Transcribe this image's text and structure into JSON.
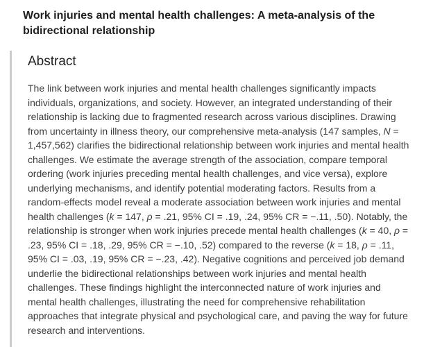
{
  "page": {
    "title": "Work injuries and mental health challenges: A meta-analysis of the bidirectional relationship"
  },
  "abstract": {
    "heading": "Abstract",
    "segments": [
      {
        "text": "The link between work injuries and mental health challenges significantly impacts individuals, organizations, and society. However, an integrated understanding of their relationship is lacking due to fragmented research across various disciplines. Drawing from uncertainty in illness theory, our comprehensive meta-analysis (147 samples, ",
        "italic": false
      },
      {
        "text": "N",
        "italic": true
      },
      {
        "text": " = 1,457,562) clarifies the bidirectional relationship between work injuries and mental health challenges. We estimate the average strength of the association, compare temporal ordering (work injuries preceding mental health challenges, and vice versa), explore underlying mechanisms, and identify potential moderating factors. Results from a random-effects model reveal a moderate association between work injuries and mental health challenges (",
        "italic": false
      },
      {
        "text": "k",
        "italic": true
      },
      {
        "text": " = 147, ",
        "italic": false
      },
      {
        "text": "ρ",
        "italic": true
      },
      {
        "text": " = .21, 95% CI = .19, .24, 95% CR = −.11, .50). Notably, the relationship is stronger when work injuries precede mental health challenges (",
        "italic": false
      },
      {
        "text": "k",
        "italic": true
      },
      {
        "text": " = 40, ",
        "italic": false
      },
      {
        "text": "ρ",
        "italic": true
      },
      {
        "text": " = .23, 95% CI = .18, .29, 95% CR = −.10, .52) compared to the reverse (",
        "italic": false
      },
      {
        "text": "k",
        "italic": true
      },
      {
        "text": " = 18, ",
        "italic": false
      },
      {
        "text": "ρ",
        "italic": true
      },
      {
        "text": " = .11, 95% CI = .03, .19, 95% CR = −.23, .42). Negative cognitions and perceived job demand underlie the bidirectional relationships between work injuries and mental health challenges. These findings highlight the interconnected nature of work injuries and mental health challenges, illustrating the need for comprehensive rehabilitation approaches that integrate physical and psychological care, and paving the way for future research and interventions.",
        "italic": false
      }
    ]
  },
  "colors": {
    "title": "#1f1f1f",
    "heading": "#212121",
    "body": "#3d3d3d",
    "divider": "#cccccc",
    "background": "#ffffff"
  }
}
